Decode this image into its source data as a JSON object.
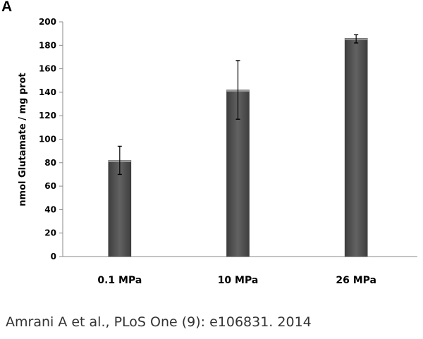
{
  "panel_label": "A",
  "citation": "Amrani A et al., PLoS One (9): e106831. 2014",
  "chart_data": {
    "type": "bar",
    "title": "",
    "xlabel": "",
    "ylabel": "nmol Glutamate / mg prot",
    "ylim": [
      0,
      200
    ],
    "yticks": [
      0,
      20,
      40,
      60,
      80,
      100,
      120,
      140,
      160,
      180,
      200
    ],
    "categories": [
      "0.1 MPa",
      "10 MPa",
      "26 MPa"
    ],
    "values": [
      82,
      142,
      186
    ],
    "error_low": [
      70,
      117,
      182
    ],
    "error_high": [
      94,
      167,
      189
    ],
    "bar_color": "#555555",
    "grid": false
  }
}
